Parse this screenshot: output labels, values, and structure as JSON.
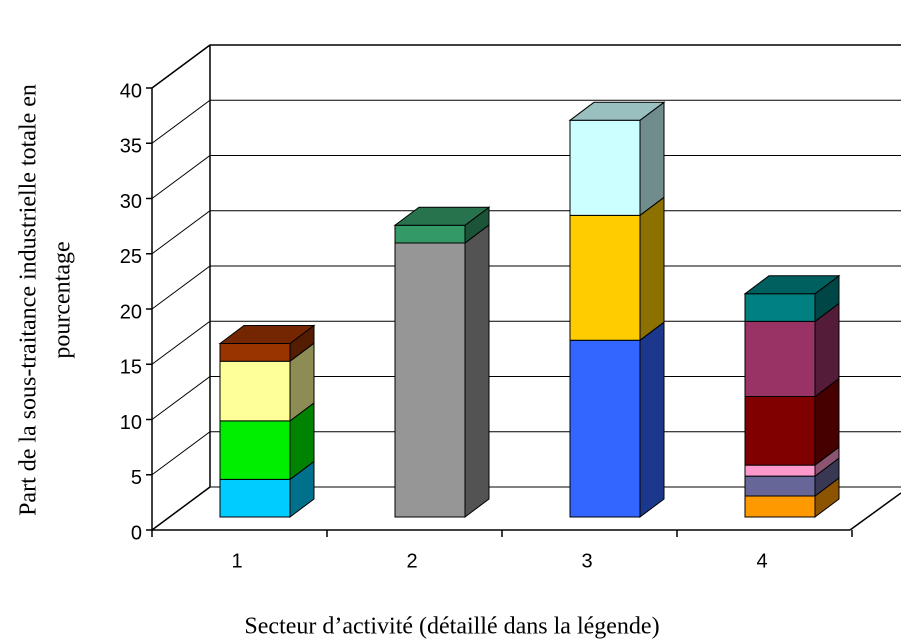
{
  "chart_data": {
    "type": "bar3d-stacked",
    "y_label": [
      "Part de la sous-traitance industrielle totale en",
      "pourcentage"
    ],
    "x_label": "Secteur d’activité (détaillé dans la légende)",
    "categories": [
      "1",
      "2",
      "3",
      "4"
    ],
    "stacks": [
      [
        {
          "color": "#00ccff",
          "value": 3.4
        },
        {
          "color": "#00ee00",
          "value": 5.3
        },
        {
          "color": "#ffff99",
          "value": 5.4
        },
        {
          "color": "#993300",
          "value": 1.6
        }
      ],
      [
        {
          "color": "#969696",
          "value": 24.8
        },
        {
          "color": "#339966",
          "value": 1.6
        }
      ],
      [
        {
          "color": "#3366ff",
          "value": 16.0
        },
        {
          "color": "#ffcc00",
          "value": 11.3
        },
        {
          "color": "#ccffff",
          "value": 8.6
        }
      ],
      [
        {
          "color": "#ff9900",
          "value": 1.9
        },
        {
          "color": "#666699",
          "value": 1.8
        },
        {
          "color": "#ff99cc",
          "value": 1.0
        },
        {
          "color": "#800000",
          "value": 6.2
        },
        {
          "color": "#993366",
          "value": 6.8
        },
        {
          "color": "#008080",
          "value": 2.5
        }
      ]
    ],
    "ylim": [
      0,
      40
    ],
    "yticks": [
      0,
      5,
      10,
      15,
      20,
      25,
      30,
      35,
      40
    ],
    "grid": true
  }
}
